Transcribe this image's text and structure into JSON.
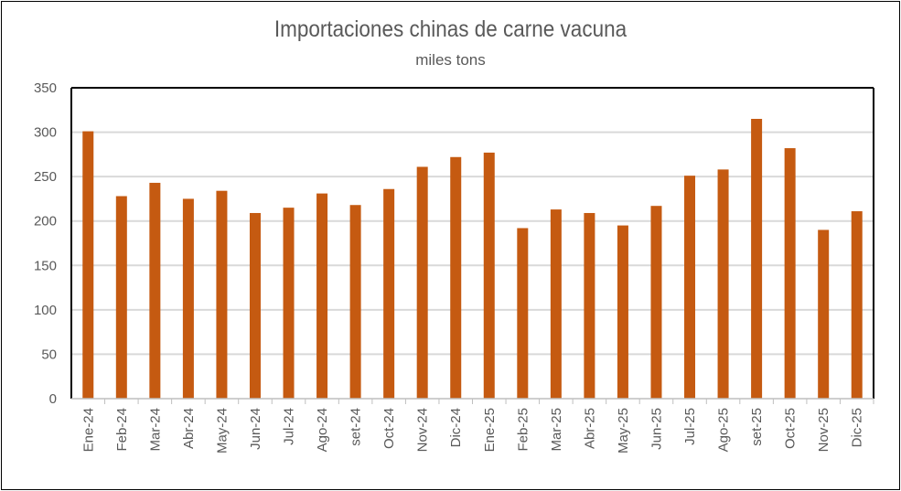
{
  "chart_data": {
    "type": "bar",
    "title": "Importaciones chinas de carne vacuna",
    "subtitle": "miles tons",
    "xlabel": "",
    "ylabel": "",
    "ylim": [
      0,
      350
    ],
    "yticks": [
      0,
      50,
      100,
      150,
      200,
      250,
      300,
      350
    ],
    "grid": true,
    "bar_color": "#C55A11",
    "categories": [
      "Ene-24",
      "Feb-24",
      "Mar-24",
      "Abr-24",
      "May-24",
      "Jun-24",
      "Jul-24",
      "Ago-24",
      "set-24",
      "Oct-24",
      "Nov-24",
      "Dic-24",
      "Ene-25",
      "Feb-25",
      "Mar-25",
      "Abr-25",
      "May-25",
      "Jun-25",
      "Jul-25",
      "Ago-25",
      "set-25",
      "Oct-25",
      "Nov-25",
      "Dic-25"
    ],
    "values": [
      301,
      228,
      243,
      225,
      234,
      209,
      215,
      231,
      218,
      236,
      261,
      272,
      277,
      192,
      213,
      209,
      195,
      217,
      251,
      258,
      315,
      282,
      190,
      211
    ]
  }
}
